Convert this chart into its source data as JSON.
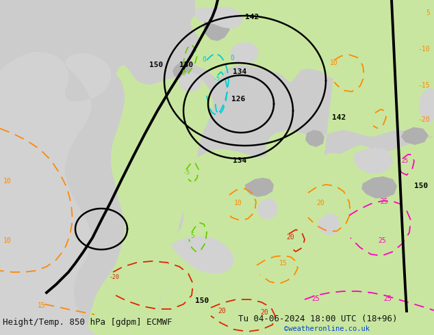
{
  "title_left": "Height/Temp. 850 hPa [gdpm] ECMWF",
  "title_right": "Tu 04-06-2024 18:00 UTC (18+96)",
  "credit": "©weatheronline.co.uk",
  "sea_color": "#d2d2d2",
  "land_light_green": "#c8e6a0",
  "land_gray": "#b0b0b0",
  "geo_color": "#000000",
  "cyan_color": "#00cccc",
  "green_color": "#66cc00",
  "orange_color": "#ff8800",
  "red_color": "#dd2200",
  "pink_color": "#ff00bb",
  "geo_lw": 1.8,
  "temp_lw": 1.3,
  "font_size_labels": 8,
  "font_size_title": 9,
  "figsize": [
    6.34,
    4.9
  ],
  "dpi": 100
}
